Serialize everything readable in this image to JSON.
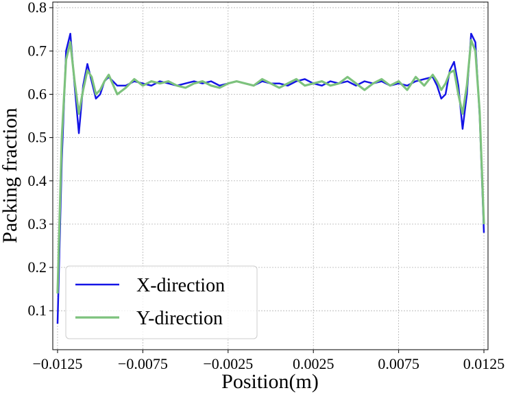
{
  "chart_data": {
    "type": "line",
    "xlabel": "Position(m)",
    "ylabel": "Packing fraction",
    "x": [
      -0.0125,
      -0.01225,
      -0.012,
      -0.01175,
      -0.0115,
      -0.01125,
      -0.011,
      -0.01075,
      -0.0105,
      -0.01025,
      -0.01,
      -0.00975,
      -0.0095,
      -0.009,
      -0.0085,
      -0.008,
      -0.0075,
      -0.007,
      -0.0065,
      -0.006,
      -0.0055,
      -0.005,
      -0.0045,
      -0.004,
      -0.0035,
      -0.003,
      -0.0025,
      -0.002,
      -0.0015,
      -0.001,
      -0.0005,
      0,
      0.0005,
      0.001,
      0.0015,
      0.002,
      0.0025,
      0.003,
      0.0035,
      0.004,
      0.0045,
      0.005,
      0.0055,
      0.006,
      0.0065,
      0.007,
      0.0075,
      0.008,
      0.0085,
      0.009,
      0.0095,
      0.00975,
      0.01,
      0.01025,
      0.0105,
      0.01075,
      0.011,
      0.01125,
      0.0115,
      0.01175,
      0.012,
      0.01225,
      0.0125
    ],
    "series": [
      {
        "name": "X-direction",
        "color": "#1414e6",
        "values": [
          0.07,
          0.45,
          0.7,
          0.74,
          0.62,
          0.51,
          0.62,
          0.67,
          0.63,
          0.59,
          0.6,
          0.63,
          0.64,
          0.62,
          0.62,
          0.63,
          0.625,
          0.62,
          0.63,
          0.625,
          0.62,
          0.625,
          0.63,
          0.625,
          0.63,
          0.62,
          0.625,
          0.63,
          0.625,
          0.62,
          0.63,
          0.625,
          0.625,
          0.62,
          0.63,
          0.635,
          0.625,
          0.62,
          0.63,
          0.625,
          0.63,
          0.62,
          0.63,
          0.625,
          0.63,
          0.62,
          0.625,
          0.62,
          0.63,
          0.635,
          0.64,
          0.62,
          0.59,
          0.6,
          0.655,
          0.675,
          0.62,
          0.52,
          0.6,
          0.74,
          0.72,
          0.55,
          0.28
        ]
      },
      {
        "name": "Y-direction",
        "color": "#7dc27d",
        "values": [
          0.14,
          0.5,
          0.68,
          0.72,
          0.63,
          0.555,
          0.61,
          0.655,
          0.64,
          0.6,
          0.61,
          0.63,
          0.645,
          0.6,
          0.615,
          0.635,
          0.62,
          0.63,
          0.625,
          0.63,
          0.62,
          0.615,
          0.625,
          0.63,
          0.62,
          0.615,
          0.625,
          0.63,
          0.625,
          0.62,
          0.635,
          0.625,
          0.615,
          0.625,
          0.635,
          0.62,
          0.625,
          0.63,
          0.62,
          0.625,
          0.64,
          0.625,
          0.61,
          0.625,
          0.635,
          0.62,
          0.63,
          0.61,
          0.64,
          0.62,
          0.645,
          0.63,
          0.61,
          0.625,
          0.65,
          0.655,
          0.6,
          0.555,
          0.62,
          0.725,
          0.7,
          0.56,
          0.3
        ]
      }
    ],
    "xlim": [
      -0.01278,
      0.01274
    ],
    "ylim": [
      0.01,
      0.813
    ],
    "xticks": [
      {
        "value": -0.0125,
        "label": "−0.0125"
      },
      {
        "value": -0.0075,
        "label": "−0.0075"
      },
      {
        "value": -0.0025,
        "label": "−0.0025"
      },
      0.0025,
      0.0075,
      0.0125
    ],
    "yticks": [
      0.1,
      0.2,
      0.3,
      0.4,
      0.5,
      0.6,
      0.7,
      0.8
    ],
    "grid": true,
    "legend": "lower left"
  }
}
